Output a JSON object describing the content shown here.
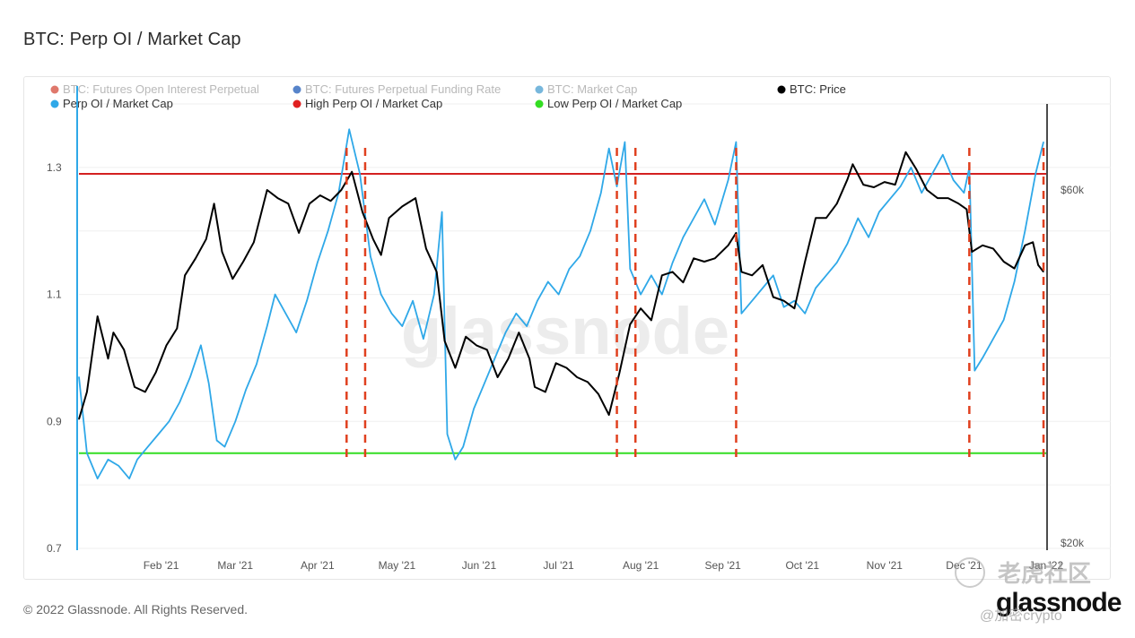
{
  "page": {
    "title": "BTC: Perp OI / Market Cap",
    "footer": "© 2022 Glassnode. All Rights Reserved.",
    "brand": "glassnode",
    "watermark": "老虎社区",
    "watermark_handle": "@加密crypto"
  },
  "chart_data": {
    "type": "line",
    "title": "BTC: Perp OI / Market Cap",
    "x_ticks": [
      "Feb '21",
      "Mar '21",
      "Apr '21",
      "May '21",
      "Jun '21",
      "Jul '21",
      "Aug '21",
      "Sep '21",
      "Oct '21",
      "Nov '21",
      "Dec '21",
      "Jan '22"
    ],
    "y_left_ticks": [
      "1.3",
      "1.1",
      "0.9",
      "0.7"
    ],
    "y_right_ticks": [
      "$60k",
      "$20k"
    ],
    "ylim_left": [
      0.7,
      1.4
    ],
    "y_right_scale": "log",
    "legend": [
      {
        "name": "BTC: Futures Open Interest Perpetual",
        "color": "#d44b3b",
        "faded": true
      },
      {
        "name": "BTC: Futures Perpetual Funding Rate",
        "color": "#1f5bb8",
        "faded": true
      },
      {
        "name": "BTC: Market Cap",
        "color": "#4a9fd0",
        "faded": true
      },
      {
        "name": "BTC: Price",
        "color": "#000000",
        "faded": false
      },
      {
        "name": "Perp OI / Market Cap",
        "color": "#2fa8e8",
        "faded": false
      },
      {
        "name": "High Perp OI / Market Cap",
        "color": "#e02020",
        "faded": false
      },
      {
        "name": "Low Perp OI / Market Cap",
        "color": "#33dd22",
        "faded": false
      }
    ],
    "legend_placement": "top",
    "high_threshold": 1.29,
    "low_threshold": 0.85,
    "signal_dates": [
      "2021-04-12",
      "2021-04-19",
      "2021-07-23",
      "2021-07-30",
      "2021-09-06",
      "2021-12-03",
      "2021-12-31"
    ],
    "series": [
      {
        "name": "Perp OI / Market Cap",
        "axis": "left",
        "color": "#2fa8e8",
        "points": [
          [
            "2021-01-01",
            0.97
          ],
          [
            "2021-01-04",
            0.85
          ],
          [
            "2021-01-08",
            0.81
          ],
          [
            "2021-01-12",
            0.84
          ],
          [
            "2021-01-16",
            0.83
          ],
          [
            "2021-01-20",
            0.81
          ],
          [
            "2021-01-23",
            0.84
          ],
          [
            "2021-01-27",
            0.86
          ],
          [
            "2021-01-31",
            0.88
          ],
          [
            "2021-02-04",
            0.9
          ],
          [
            "2021-02-08",
            0.93
          ],
          [
            "2021-02-12",
            0.97
          ],
          [
            "2021-02-16",
            1.02
          ],
          [
            "2021-02-19",
            0.96
          ],
          [
            "2021-02-22",
            0.87
          ],
          [
            "2021-02-25",
            0.86
          ],
          [
            "2021-03-01",
            0.9
          ],
          [
            "2021-03-05",
            0.95
          ],
          [
            "2021-03-09",
            0.99
          ],
          [
            "2021-03-13",
            1.05
          ],
          [
            "2021-03-16",
            1.1
          ],
          [
            "2021-03-20",
            1.07
          ],
          [
            "2021-03-24",
            1.04
          ],
          [
            "2021-03-28",
            1.09
          ],
          [
            "2021-04-01",
            1.15
          ],
          [
            "2021-04-05",
            1.2
          ],
          [
            "2021-04-09",
            1.26
          ],
          [
            "2021-04-13",
            1.36
          ],
          [
            "2021-04-17",
            1.29
          ],
          [
            "2021-04-21",
            1.16
          ],
          [
            "2021-04-25",
            1.1
          ],
          [
            "2021-04-29",
            1.07
          ],
          [
            "2021-05-03",
            1.05
          ],
          [
            "2021-05-07",
            1.09
          ],
          [
            "2021-05-11",
            1.03
          ],
          [
            "2021-05-15",
            1.1
          ],
          [
            "2021-05-18",
            1.23
          ],
          [
            "2021-05-20",
            0.88
          ],
          [
            "2021-05-23",
            0.84
          ],
          [
            "2021-05-26",
            0.86
          ],
          [
            "2021-05-30",
            0.92
          ],
          [
            "2021-06-03",
            0.96
          ],
          [
            "2021-06-07",
            1.0
          ],
          [
            "2021-06-11",
            1.04
          ],
          [
            "2021-06-15",
            1.07
          ],
          [
            "2021-06-19",
            1.05
          ],
          [
            "2021-06-23",
            1.09
          ],
          [
            "2021-06-27",
            1.12
          ],
          [
            "2021-07-01",
            1.1
          ],
          [
            "2021-07-05",
            1.14
          ],
          [
            "2021-07-09",
            1.16
          ],
          [
            "2021-07-13",
            1.2
          ],
          [
            "2021-07-17",
            1.26
          ],
          [
            "2021-07-20",
            1.33
          ],
          [
            "2021-07-23",
            1.27
          ],
          [
            "2021-07-26",
            1.34
          ],
          [
            "2021-07-28",
            1.14
          ],
          [
            "2021-08-01",
            1.1
          ],
          [
            "2021-08-05",
            1.13
          ],
          [
            "2021-08-09",
            1.1
          ],
          [
            "2021-08-13",
            1.15
          ],
          [
            "2021-08-17",
            1.19
          ],
          [
            "2021-08-21",
            1.22
          ],
          [
            "2021-08-25",
            1.25
          ],
          [
            "2021-08-29",
            1.21
          ],
          [
            "2021-09-03",
            1.28
          ],
          [
            "2021-09-06",
            1.34
          ],
          [
            "2021-09-08",
            1.07
          ],
          [
            "2021-09-12",
            1.09
          ],
          [
            "2021-09-16",
            1.11
          ],
          [
            "2021-09-20",
            1.13
          ],
          [
            "2021-09-24",
            1.08
          ],
          [
            "2021-09-28",
            1.09
          ],
          [
            "2021-10-02",
            1.07
          ],
          [
            "2021-10-06",
            1.11
          ],
          [
            "2021-10-10",
            1.13
          ],
          [
            "2021-10-14",
            1.15
          ],
          [
            "2021-10-18",
            1.18
          ],
          [
            "2021-10-22",
            1.22
          ],
          [
            "2021-10-26",
            1.19
          ],
          [
            "2021-10-30",
            1.23
          ],
          [
            "2021-11-03",
            1.25
          ],
          [
            "2021-11-07",
            1.27
          ],
          [
            "2021-11-11",
            1.3
          ],
          [
            "2021-11-15",
            1.26
          ],
          [
            "2021-11-19",
            1.29
          ],
          [
            "2021-11-23",
            1.32
          ],
          [
            "2021-11-27",
            1.28
          ],
          [
            "2021-12-01",
            1.26
          ],
          [
            "2021-12-03",
            1.3
          ],
          [
            "2021-12-05",
            0.98
          ],
          [
            "2021-12-08",
            1.0
          ],
          [
            "2021-12-12",
            1.03
          ],
          [
            "2021-12-16",
            1.06
          ],
          [
            "2021-12-20",
            1.12
          ],
          [
            "2021-12-24",
            1.2
          ],
          [
            "2021-12-28",
            1.29
          ],
          [
            "2021-12-31",
            1.34
          ]
        ]
      },
      {
        "name": "BTC: Price",
        "axis": "right",
        "color": "#000000",
        "points": [
          [
            "2021-01-01",
            29400
          ],
          [
            "2021-01-04",
            32000
          ],
          [
            "2021-01-08",
            40500
          ],
          [
            "2021-01-12",
            35500
          ],
          [
            "2021-01-14",
            38500
          ],
          [
            "2021-01-18",
            36500
          ],
          [
            "2021-01-22",
            32500
          ],
          [
            "2021-01-26",
            32000
          ],
          [
            "2021-01-30",
            34000
          ],
          [
            "2021-02-03",
            37000
          ],
          [
            "2021-02-07",
            39000
          ],
          [
            "2021-02-10",
            46000
          ],
          [
            "2021-02-14",
            48500
          ],
          [
            "2021-02-18",
            51500
          ],
          [
            "2021-02-21",
            57500
          ],
          [
            "2021-02-24",
            49500
          ],
          [
            "2021-02-28",
            45500
          ],
          [
            "2021-03-04",
            48000
          ],
          [
            "2021-03-08",
            51000
          ],
          [
            "2021-03-13",
            60000
          ],
          [
            "2021-03-17",
            58500
          ],
          [
            "2021-03-21",
            57500
          ],
          [
            "2021-03-25",
            52500
          ],
          [
            "2021-03-29",
            57500
          ],
          [
            "2021-04-02",
            59000
          ],
          [
            "2021-04-06",
            58000
          ],
          [
            "2021-04-10",
            60000
          ],
          [
            "2021-04-14",
            63500
          ],
          [
            "2021-04-18",
            56000
          ],
          [
            "2021-04-22",
            51500
          ],
          [
            "2021-04-25",
            49000
          ],
          [
            "2021-04-28",
            55000
          ],
          [
            "2021-05-03",
            57000
          ],
          [
            "2021-05-08",
            58500
          ],
          [
            "2021-05-12",
            50000
          ],
          [
            "2021-05-16",
            46500
          ],
          [
            "2021-05-19",
            37500
          ],
          [
            "2021-05-23",
            34500
          ],
          [
            "2021-05-27",
            38000
          ],
          [
            "2021-05-31",
            37000
          ],
          [
            "2021-06-04",
            36500
          ],
          [
            "2021-06-08",
            33500
          ],
          [
            "2021-06-12",
            35500
          ],
          [
            "2021-06-16",
            38500
          ],
          [
            "2021-06-20",
            35500
          ],
          [
            "2021-06-22",
            32500
          ],
          [
            "2021-06-26",
            32000
          ],
          [
            "2021-06-30",
            35000
          ],
          [
            "2021-07-04",
            34500
          ],
          [
            "2021-07-08",
            33500
          ],
          [
            "2021-07-12",
            33000
          ],
          [
            "2021-07-16",
            31800
          ],
          [
            "2021-07-20",
            29800
          ],
          [
            "2021-07-24",
            34000
          ],
          [
            "2021-07-28",
            39500
          ],
          [
            "2021-08-01",
            41500
          ],
          [
            "2021-08-05",
            40000
          ],
          [
            "2021-08-09",
            46000
          ],
          [
            "2021-08-13",
            46500
          ],
          [
            "2021-08-17",
            45000
          ],
          [
            "2021-08-21",
            48500
          ],
          [
            "2021-08-25",
            48000
          ],
          [
            "2021-08-29",
            48500
          ],
          [
            "2021-09-03",
            50500
          ],
          [
            "2021-09-06",
            52500
          ],
          [
            "2021-09-08",
            46500
          ],
          [
            "2021-09-12",
            46000
          ],
          [
            "2021-09-16",
            47500
          ],
          [
            "2021-09-20",
            43000
          ],
          [
            "2021-09-24",
            42500
          ],
          [
            "2021-09-28",
            41500
          ],
          [
            "2021-10-02",
            48000
          ],
          [
            "2021-10-06",
            55000
          ],
          [
            "2021-10-10",
            55000
          ],
          [
            "2021-10-14",
            57500
          ],
          [
            "2021-10-18",
            62000
          ],
          [
            "2021-10-20",
            65000
          ],
          [
            "2021-10-24",
            61000
          ],
          [
            "2021-10-28",
            60500
          ],
          [
            "2021-11-01",
            61500
          ],
          [
            "2021-11-05",
            61000
          ],
          [
            "2021-11-09",
            67500
          ],
          [
            "2021-11-13",
            64000
          ],
          [
            "2021-11-17",
            60000
          ],
          [
            "2021-11-21",
            58500
          ],
          [
            "2021-11-25",
            58500
          ],
          [
            "2021-11-29",
            57500
          ],
          [
            "2021-12-02",
            56500
          ],
          [
            "2021-12-04",
            49500
          ],
          [
            "2021-12-08",
            50500
          ],
          [
            "2021-12-12",
            50000
          ],
          [
            "2021-12-16",
            48000
          ],
          [
            "2021-12-20",
            47000
          ],
          [
            "2021-12-24",
            50500
          ],
          [
            "2021-12-27",
            51000
          ],
          [
            "2021-12-29",
            47500
          ],
          [
            "2021-12-31",
            46500
          ]
        ]
      }
    ]
  }
}
